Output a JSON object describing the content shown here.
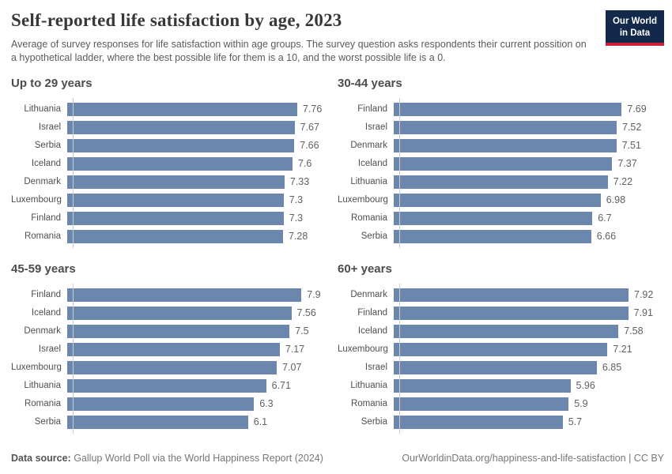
{
  "header": {
    "title": "Self-reported life satisfaction by age, 2023",
    "subtitle": "Average of survey responses for life satisfaction within age groups. The survey question asks respondents their current possition on a hypothetical ladder, where the best possible life for them is a 10, and the worst possible life is a 0.",
    "logo": {
      "line1": "Our World",
      "line2": "in Data"
    }
  },
  "colors": {
    "bar": "#6c87ad",
    "logo_navy": "#12294b",
    "logo_red": "#cb2035",
    "axis_line": "#cccccc"
  },
  "chart_data": [
    {
      "type": "bar",
      "orientation": "horizontal",
      "title": "Up to 29 years",
      "categories": [
        "Lithuania",
        "Israel",
        "Serbia",
        "Iceland",
        "Denmark",
        "Luxembourg",
        "Finland",
        "Romania"
      ],
      "values": [
        7.76,
        7.67,
        7.66,
        7.6,
        7.33,
        7.3,
        7.3,
        7.28
      ],
      "xlim": [
        0,
        8.3
      ],
      "grid": false,
      "value_labels": true
    },
    {
      "type": "bar",
      "orientation": "horizontal",
      "title": "30-44 years",
      "categories": [
        "Finland",
        "Israel",
        "Denmark",
        "Iceland",
        "Lithuania",
        "Luxembourg",
        "Romania",
        "Serbia"
      ],
      "values": [
        7.69,
        7.52,
        7.51,
        7.37,
        7.22,
        6.98,
        6.7,
        6.66
      ],
      "xlim": [
        0,
        8.3
      ],
      "grid": false,
      "value_labels": true
    },
    {
      "type": "bar",
      "orientation": "horizontal",
      "title": "45-59 years",
      "categories": [
        "Finland",
        "Iceland",
        "Denmark",
        "Israel",
        "Luxembourg",
        "Lithuania",
        "Romania",
        "Serbia"
      ],
      "values": [
        7.9,
        7.56,
        7.5,
        7.17,
        7.07,
        6.71,
        6.3,
        6.1
      ],
      "xlim": [
        0,
        8.3
      ],
      "grid": false,
      "value_labels": true
    },
    {
      "type": "bar",
      "orientation": "horizontal",
      "title": "60+ years",
      "categories": [
        "Denmark",
        "Finland",
        "Iceland",
        "Luxembourg",
        "Israel",
        "Lithuania",
        "Romania",
        "Serbia"
      ],
      "values": [
        7.92,
        7.91,
        7.58,
        7.21,
        6.85,
        5.96,
        5.9,
        5.7
      ],
      "xlim": [
        0,
        8.3
      ],
      "grid": false,
      "value_labels": true
    }
  ],
  "footer": {
    "source_label": "Data source:",
    "source_text": "Gallup World Poll via the World Happiness Report (2024)",
    "link_text": "OurWorldinData.org/happiness-and-life-satisfaction | CC BY"
  }
}
